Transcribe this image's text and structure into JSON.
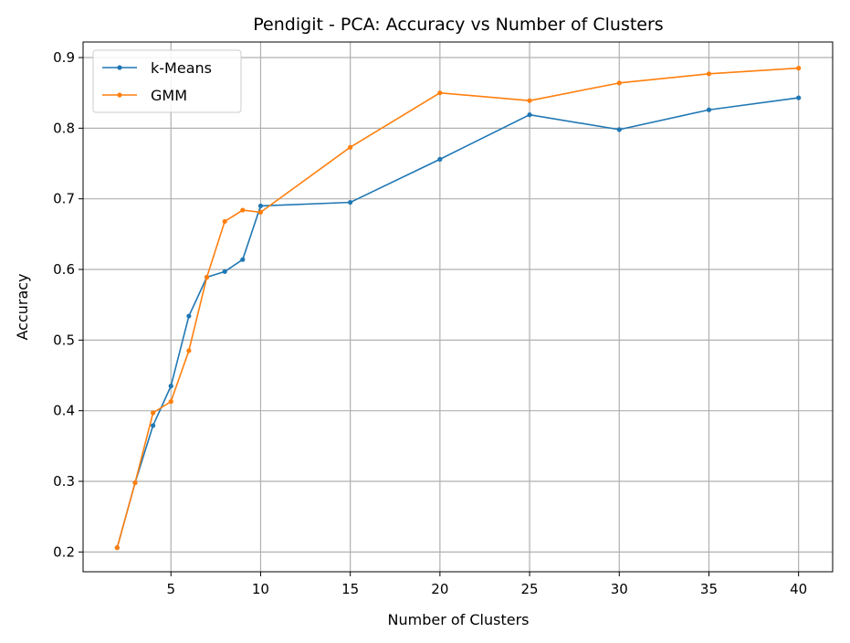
{
  "chart_data": {
    "type": "line",
    "title": "Pendigit - PCA: Accuracy vs Number of Clusters",
    "xlabel": "Number of Clusters",
    "ylabel": "Accuracy",
    "xlim": [
      0.1,
      41.9
    ],
    "ylim": [
      0.172,
      0.922
    ],
    "xticks": [
      5,
      10,
      15,
      20,
      25,
      30,
      35,
      40
    ],
    "yticks": [
      0.2,
      0.3,
      0.4,
      0.5,
      0.6,
      0.7,
      0.8,
      0.9
    ],
    "grid": true,
    "legend_position": "top-left",
    "x": [
      2,
      3,
      4,
      5,
      6,
      7,
      8,
      9,
      10,
      15,
      20,
      25,
      30,
      35,
      40
    ],
    "series": [
      {
        "name": "k-Means",
        "color": "#1f77b4",
        "values": [
          0.206,
          0.298,
          0.379,
          0.435,
          0.534,
          0.589,
          0.597,
          0.614,
          0.69,
          0.695,
          0.756,
          0.819,
          0.798,
          0.826,
          0.843
        ]
      },
      {
        "name": "GMM",
        "color": "#ff7f0e",
        "values": [
          0.206,
          0.298,
          0.397,
          0.413,
          0.485,
          0.589,
          0.668,
          0.684,
          0.681,
          0.773,
          0.85,
          0.839,
          0.864,
          0.877,
          0.885
        ]
      }
    ]
  }
}
